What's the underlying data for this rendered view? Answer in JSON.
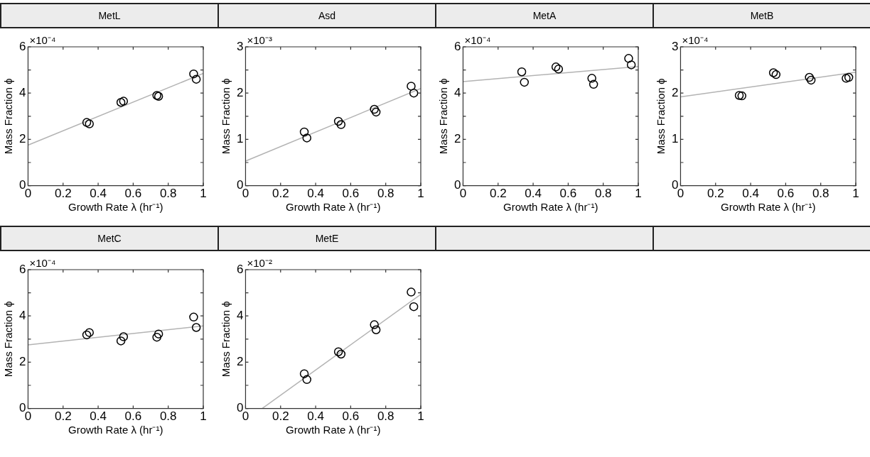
{
  "chart_data": [
    {
      "type": "scatter",
      "title": "MetL",
      "xlabel": "Growth Rate λ (hr⁻¹)",
      "ylabel": "Mass Fraction ϕ",
      "xlim": [
        0,
        1
      ],
      "xticks": [
        0,
        0.2,
        0.4,
        0.6,
        0.8,
        1
      ],
      "ylim": [
        0,
        6
      ],
      "yticks": [
        0,
        {
          "value": 1,
          "label": null
        },
        2,
        {
          "value": 3,
          "label": null
        },
        4,
        {
          "value": 5,
          "label": null
        },
        6
      ],
      "grid": false,
      "annotations": [
        "×10⁻⁴"
      ],
      "series": [
        {
          "type": "scatter",
          "marker": "circle",
          "color": "#000000",
          "x": [
            0.335,
            0.35,
            0.53,
            0.545,
            0.735,
            0.745,
            0.945,
            0.96
          ],
          "values": [
            2.73,
            2.67,
            3.6,
            3.65,
            3.9,
            3.86,
            4.83,
            4.6
          ]
        },
        {
          "type": "line",
          "marker": "none",
          "color": "#b3b3b3",
          "x": [
            0,
            1
          ],
          "values": [
            1.75,
            4.85
          ]
        }
      ]
    },
    {
      "type": "scatter",
      "title": "Asd",
      "xlabel": "Growth Rate λ (hr⁻¹)",
      "ylabel": "Mass Fraction ϕ",
      "xlim": [
        0,
        1
      ],
      "xticks": [
        0,
        0.2,
        0.4,
        0.6,
        0.8,
        1
      ],
      "ylim": [
        0,
        3
      ],
      "yticks": [
        0,
        {
          "value": 0.5,
          "label": null
        },
        1,
        {
          "value": 1.5,
          "label": null
        },
        2,
        {
          "value": 2.5,
          "label": null
        },
        3
      ],
      "grid": false,
      "annotations": [
        "×10⁻³"
      ],
      "series": [
        {
          "type": "scatter",
          "marker": "circle",
          "color": "#000000",
          "x": [
            0.335,
            0.35,
            0.53,
            0.545,
            0.735,
            0.745,
            0.945,
            0.96
          ],
          "values": [
            1.16,
            1.03,
            1.39,
            1.32,
            1.65,
            1.59,
            2.15,
            2.0
          ]
        },
        {
          "type": "line",
          "marker": "none",
          "color": "#b3b3b3",
          "x": [
            0,
            1
          ],
          "values": [
            0.53,
            2.1
          ]
        }
      ]
    },
    {
      "type": "scatter",
      "title": "MetA",
      "xlabel": "Growth Rate λ (hr⁻¹)",
      "ylabel": "Mass Fraction ϕ",
      "xlim": [
        0,
        1
      ],
      "xticks": [
        0,
        0.2,
        0.4,
        0.6,
        0.8,
        1
      ],
      "ylim": [
        0,
        6
      ],
      "yticks": [
        0,
        {
          "value": 1,
          "label": null
        },
        2,
        {
          "value": 3,
          "label": null
        },
        4,
        {
          "value": 5,
          "label": null
        },
        6
      ],
      "grid": false,
      "annotations": [
        "×10⁻⁴"
      ],
      "series": [
        {
          "type": "scatter",
          "marker": "circle",
          "color": "#000000",
          "x": [
            0.335,
            0.35,
            0.53,
            0.545,
            0.735,
            0.745,
            0.945,
            0.96
          ],
          "values": [
            4.92,
            4.47,
            5.13,
            5.04,
            4.64,
            4.38,
            5.5,
            5.22
          ]
        },
        {
          "type": "line",
          "marker": "none",
          "color": "#b3b3b3",
          "x": [
            0,
            1
          ],
          "values": [
            4.5,
            5.15
          ]
        }
      ]
    },
    {
      "type": "scatter",
      "title": "MetB",
      "xlabel": "Growth Rate λ (hr⁻¹)",
      "ylabel": "Mass Fraction ϕ",
      "xlim": [
        0,
        1
      ],
      "xticks": [
        0,
        0.2,
        0.4,
        0.6,
        0.8,
        1
      ],
      "ylim": [
        0,
        3
      ],
      "yticks": [
        0,
        {
          "value": 0.5,
          "label": null
        },
        1,
        {
          "value": 1.5,
          "label": null
        },
        2,
        {
          "value": 2.5,
          "label": null
        },
        3
      ],
      "grid": false,
      "annotations": [
        "×10⁻⁴"
      ],
      "series": [
        {
          "type": "scatter",
          "marker": "circle",
          "color": "#000000",
          "x": [
            0.335,
            0.35,
            0.53,
            0.545,
            0.735,
            0.745,
            0.945,
            0.96
          ],
          "values": [
            1.95,
            1.94,
            2.44,
            2.4,
            2.34,
            2.28,
            2.32,
            2.34
          ]
        },
        {
          "type": "line",
          "marker": "none",
          "color": "#b3b3b3",
          "x": [
            0,
            1
          ],
          "values": [
            1.92,
            2.45
          ]
        }
      ]
    },
    {
      "type": "scatter",
      "title": "MetC",
      "xlabel": "Growth Rate λ (hr⁻¹)",
      "ylabel": "Mass Fraction ϕ",
      "xlim": [
        0,
        1
      ],
      "xticks": [
        0,
        0.2,
        0.4,
        0.6,
        0.8,
        1
      ],
      "ylim": [
        0,
        6
      ],
      "yticks": [
        0,
        {
          "value": 1,
          "label": null
        },
        2,
        {
          "value": 3,
          "label": null
        },
        4,
        {
          "value": 5,
          "label": null
        },
        6
      ],
      "grid": false,
      "annotations": [
        "×10⁻⁴"
      ],
      "series": [
        {
          "type": "scatter",
          "marker": "circle",
          "color": "#000000",
          "x": [
            0.335,
            0.35,
            0.53,
            0.545,
            0.735,
            0.745,
            0.945,
            0.96
          ],
          "values": [
            3.18,
            3.28,
            2.92,
            3.1,
            3.08,
            3.22,
            3.95,
            3.5
          ]
        },
        {
          "type": "line",
          "marker": "none",
          "color": "#b3b3b3",
          "x": [
            0,
            1
          ],
          "values": [
            2.75,
            3.57
          ]
        }
      ]
    },
    {
      "type": "scatter",
      "title": "MetE",
      "xlabel": "Growth Rate λ (hr⁻¹)",
      "ylabel": "Mass Fraction ϕ",
      "xlim": [
        0,
        1
      ],
      "xticks": [
        0,
        0.2,
        0.4,
        0.6,
        0.8,
        1
      ],
      "ylim": [
        0,
        6
      ],
      "yticks": [
        0,
        {
          "value": 1,
          "label": null
        },
        2,
        {
          "value": 3,
          "label": null
        },
        4,
        {
          "value": 5,
          "label": null
        },
        6
      ],
      "grid": false,
      "annotations": [
        "×10⁻²"
      ],
      "series": [
        {
          "type": "scatter",
          "marker": "circle",
          "color": "#000000",
          "x": [
            0.335,
            0.35,
            0.53,
            0.545,
            0.735,
            0.745,
            0.945,
            0.96
          ],
          "values": [
            1.5,
            1.25,
            2.45,
            2.35,
            3.62,
            3.4,
            5.03,
            4.4
          ]
        },
        {
          "type": "line",
          "marker": "none",
          "color": "#b3b3b3",
          "x": [
            0.095,
            1
          ],
          "values": [
            0,
            4.93
          ]
        }
      ]
    }
  ]
}
